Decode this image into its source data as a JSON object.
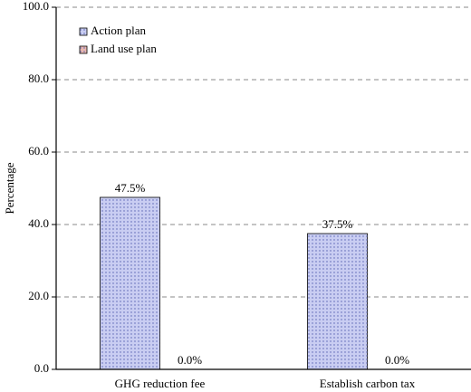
{
  "chart_data": {
    "type": "bar",
    "y_label": "Percentage",
    "categories": [
      "GHG reduction fee",
      "Establish carbon tax"
    ],
    "series": [
      {
        "name": "Action plan",
        "color": "#c9cdf2",
        "values": [
          47.5,
          37.5
        ],
        "value_labels": [
          "47.5%",
          "37.5%"
        ]
      },
      {
        "name": "Land use plan",
        "color": "#e8b7b0",
        "values": [
          0,
          0
        ],
        "value_labels": [
          "0.0%",
          "0.0%"
        ]
      }
    ],
    "ylim": [
      0,
      100
    ],
    "yticks": [
      {
        "value": 0,
        "label": "0.0"
      },
      {
        "value": 20,
        "label": "20.0"
      },
      {
        "value": 40,
        "label": "40.0"
      },
      {
        "value": 60,
        "label": "60.0"
      },
      {
        "value": 80,
        "label": "80.0"
      },
      {
        "value": 100,
        "label": "100.0"
      }
    ],
    "grid": true,
    "legend": "upper-left"
  }
}
